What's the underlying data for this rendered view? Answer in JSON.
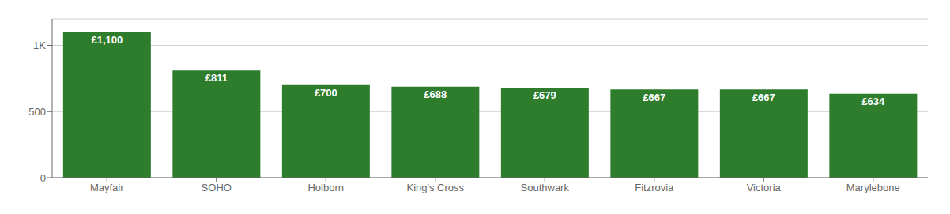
{
  "chart_data": {
    "type": "bar",
    "categories": [
      "Mayfair",
      "SOHO",
      "Holborn",
      "King's Cross",
      "Southwark",
      "Fitzrovia",
      "Victoria",
      "Marylebone"
    ],
    "values": [
      1100,
      811,
      700,
      688,
      679,
      667,
      667,
      634
    ],
    "value_labels": [
      "£1,100",
      "£811",
      "£700",
      "£688",
      "£679",
      "£667",
      "£667",
      "£634"
    ],
    "data_labels": true,
    "color": "#2d7d2d",
    "ylim": [
      0,
      1200
    ],
    "yticks": [
      0,
      500,
      {
        "value": 1000,
        "label": "1K"
      }
    ],
    "grid": true
  }
}
